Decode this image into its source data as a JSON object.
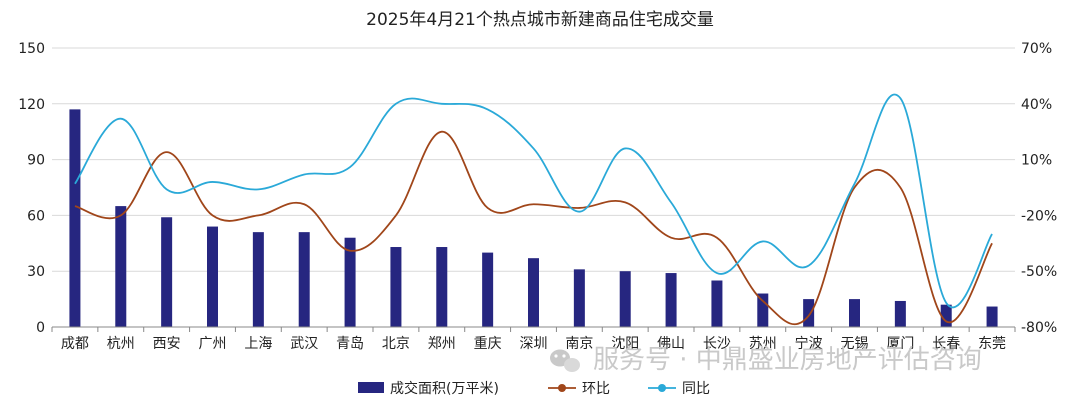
{
  "chart_data": {
    "type": "bar",
    "title": "2025年4月21个热点城市新建商品住宅成交量",
    "categories": [
      "成都",
      "杭州",
      "西安",
      "广州",
      "上海",
      "武汉",
      "青岛",
      "北京",
      "郑州",
      "重庆",
      "深圳",
      "南京",
      "沈阳",
      "佛山",
      "长沙",
      "苏州",
      "宁波",
      "无锡",
      "厦门",
      "长春",
      "东莞"
    ],
    "y_left": {
      "ylim": [
        0,
        150
      ],
      "ticks": [
        "0",
        "30",
        "60",
        "90",
        "120",
        "150"
      ]
    },
    "y_right": {
      "ylim": [
        -80,
        70
      ],
      "ticks": [
        "-80%",
        "-50%",
        "-20%",
        "10%",
        "40%",
        "70%"
      ]
    },
    "grid": true,
    "legend_position": "bottom",
    "series": [
      {
        "name": "成交面积(万平米)",
        "type": "bar",
        "axis": "left",
        "color": "#262680",
        "values": [
          117,
          65,
          59,
          54,
          51,
          51,
          48,
          43,
          43,
          40,
          37,
          31,
          30,
          29,
          25,
          18,
          15,
          15,
          14,
          12,
          11
        ]
      },
      {
        "name": "环比",
        "type": "line",
        "axis": "right",
        "color": "#a0461a",
        "values": [
          -15,
          -20,
          14,
          -20,
          -20,
          -14,
          -39,
          -20,
          25,
          -16,
          -14,
          -16,
          -13,
          -32,
          -32,
          -66,
          -74,
          -5,
          -5,
          -77,
          -35
        ]
      },
      {
        "name": "同比",
        "type": "line",
        "axis": "right",
        "color": "#2aa9d8",
        "values": [
          -3,
          32,
          -6,
          -2,
          -6,
          2,
          6,
          40,
          40,
          37,
          16,
          -18,
          16,
          -13,
          -51,
          -34,
          -47,
          -3,
          43,
          -67,
          -30
        ]
      }
    ]
  },
  "watermark": {
    "text": "服务号 · 中鼎盛业房地产评估咨询",
    "icon": "wechat-icon"
  }
}
